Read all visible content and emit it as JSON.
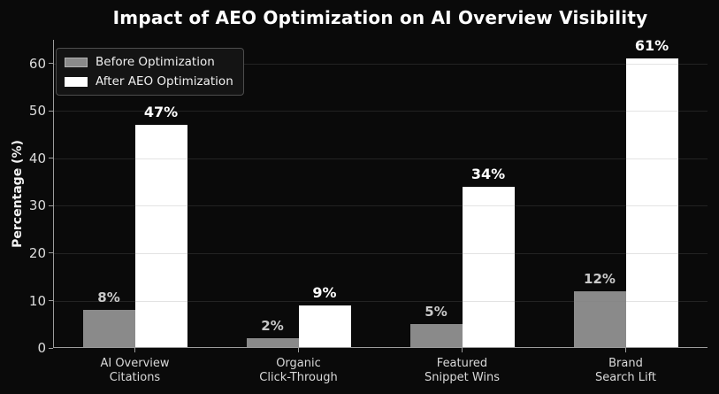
{
  "title": "Impact of AEO Optimization on AI Overview Visibility",
  "colors": {
    "background": "#0a0a0a",
    "axis_spine": "#9c9c9c",
    "grid": "#808080",
    "grid_alpha": 0.22,
    "tick_label": "#dcdcdc",
    "category_label": "#d9d9d9",
    "title": "#ffffff"
  },
  "chart_data": {
    "type": "bar",
    "title": "Impact of AEO Optimization on AI Overview Visibility",
    "xlabel": "",
    "ylabel": "Percentage (%)",
    "categories": [
      [
        "AI Overview",
        "Citations"
      ],
      [
        "Organic",
        "Click-Through"
      ],
      [
        "Featured",
        "Snippet Wins"
      ],
      [
        "Brand",
        "Search Lift"
      ]
    ],
    "series": [
      {
        "name": "Before Optimization",
        "color": "#8a8a8a",
        "label_color": "#c9c9c9",
        "values": [
          8,
          2,
          5,
          12
        ]
      },
      {
        "name": "After AEO Optimization",
        "color": "#ffffff",
        "label_color": "#ffffff",
        "values": [
          47,
          9,
          34,
          61
        ]
      }
    ],
    "value_suffix": "%",
    "data_labels": [
      "8%",
      "2%",
      "5%",
      "12%",
      "47%",
      "9%",
      "34%",
      "61%"
    ],
    "yticks": [
      0,
      10,
      20,
      30,
      40,
      50,
      60
    ],
    "ylim": [
      0,
      65
    ],
    "grid": true,
    "grid_over_bars": true,
    "legend_position": "upper left"
  }
}
